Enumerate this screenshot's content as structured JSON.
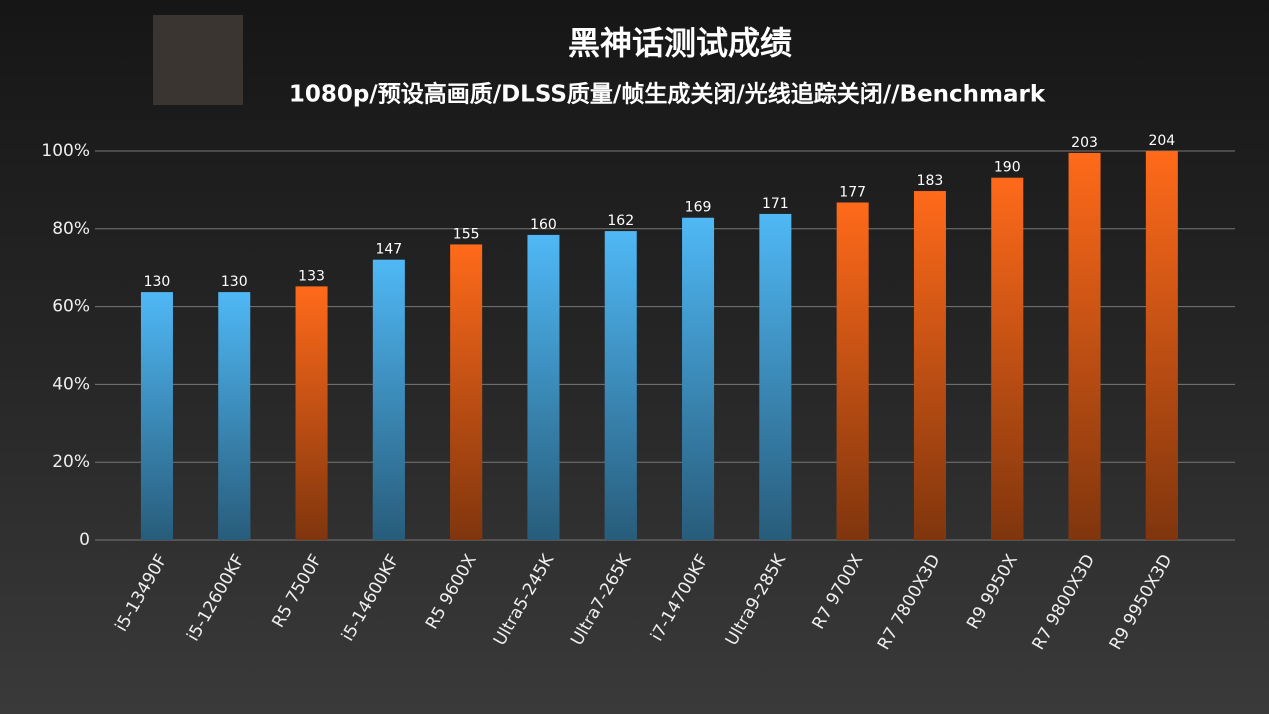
{
  "chart_data": {
    "type": "bar",
    "title": "黑神话测试成绩",
    "subtitle": "1080p/预设高画质/DLSS质量/帧生成关闭/光线追踪关闭//Benchmark",
    "categories": [
      "i5-13490F",
      "i5-12600KF",
      "R5 7500F",
      "i5-14600KF",
      "R5 9600X",
      "Ultra5-245K",
      "Ultra7-265K",
      "i7-14700KF",
      "Ultra9-285K",
      "R7 9700X",
      "R7 7800X3D",
      "R9 9950X",
      "R7 9800X3D",
      "R9 9950X3D"
    ],
    "values": [
      130,
      130,
      133,
      147,
      155,
      160,
      162,
      169,
      171,
      177,
      183,
      190,
      203,
      204
    ],
    "colors": [
      "#4fb8f5",
      "#4fb8f5",
      "#ff6a1a",
      "#4fb8f5",
      "#ff6a1a",
      "#4fb8f5",
      "#4fb8f5",
      "#4fb8f5",
      "#4fb8f5",
      "#ff6a1a",
      "#ff6a1a",
      "#ff6a1a",
      "#ff6a1a",
      "#ff6a1a"
    ],
    "ylim": [
      0,
      204
    ],
    "yticks": [
      0,
      {
        "value": 40.8,
        "label": "20%"
      },
      {
        "value": 81.6,
        "label": "40%"
      },
      {
        "value": 122.4,
        "label": "60%"
      },
      {
        "value": 163.2,
        "label": "80%"
      },
      {
        "value": 204,
        "label": "100%"
      }
    ],
    "grid": true
  }
}
